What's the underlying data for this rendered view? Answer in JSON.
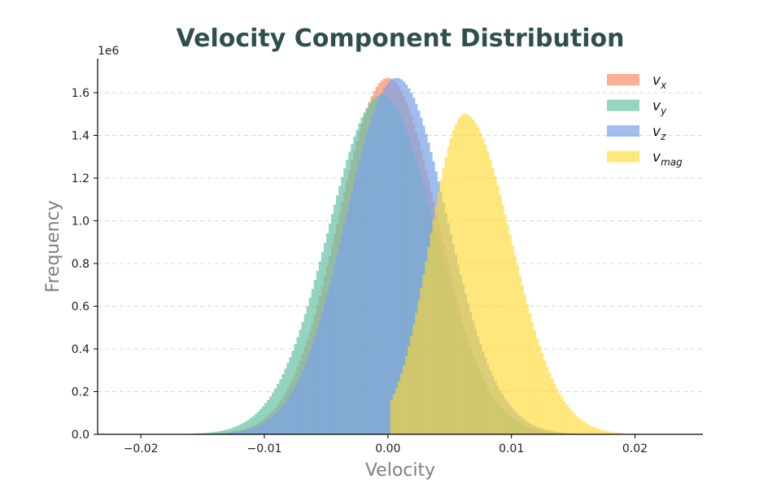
{
  "chart_data": {
    "type": "histogram",
    "title": "Velocity Component Distribution",
    "xlabel": "Velocity",
    "ylabel": "Frequency",
    "y_scale_label": "1e6",
    "xlim": [
      -0.0235,
      0.0255
    ],
    "ylim": [
      0,
      1760000
    ],
    "x_ticks": [
      -0.02,
      -0.01,
      0.0,
      0.01,
      0.02
    ],
    "x_tick_labels": [
      "−0.02",
      "−0.01",
      "0.00",
      "0.01",
      "0.02"
    ],
    "y_ticks": [
      0,
      200000,
      400000,
      600000,
      800000,
      1000000,
      1200000,
      1400000,
      1600000
    ],
    "y_tick_labels": [
      "0.0",
      "0.2",
      "0.4",
      "0.6",
      "0.8",
      "1.0",
      "1.2",
      "1.4",
      "1.6"
    ],
    "grid": "horizontal-dashed",
    "legend_position": "top-right",
    "bin_width": 0.0002,
    "series": [
      {
        "name": "v_x",
        "base": "v",
        "sub": "x",
        "color": "#fc8d62",
        "opacity": 0.7,
        "distribution": "normal",
        "mean": 0.0,
        "std": 0.004,
        "peak": 1670000,
        "range": [
          -0.016,
          0.016
        ]
      },
      {
        "name": "v_y",
        "base": "v",
        "sub": "y",
        "color": "#66c2a5",
        "opacity": 0.7,
        "distribution": "normal",
        "mean": -0.0005,
        "std": 0.0043,
        "peak": 1590000,
        "range": [
          -0.016,
          0.016
        ]
      },
      {
        "name": "v_z",
        "base": "v",
        "sub": "z",
        "color": "#7ba3e8",
        "opacity": 0.72,
        "distribution": "normal",
        "mean": 0.0007,
        "std": 0.0041,
        "peak": 1670000,
        "range": [
          -0.016,
          0.016
        ]
      },
      {
        "name": "v_mag",
        "base": "v",
        "sub": "mag",
        "color": "#ffd92f",
        "opacity": 0.62,
        "distribution": "skewed",
        "mode": 0.0062,
        "std_left": 0.0028,
        "std_right": 0.0038,
        "peak": 1500000,
        "range": [
          0.0,
          0.019
        ]
      }
    ]
  }
}
